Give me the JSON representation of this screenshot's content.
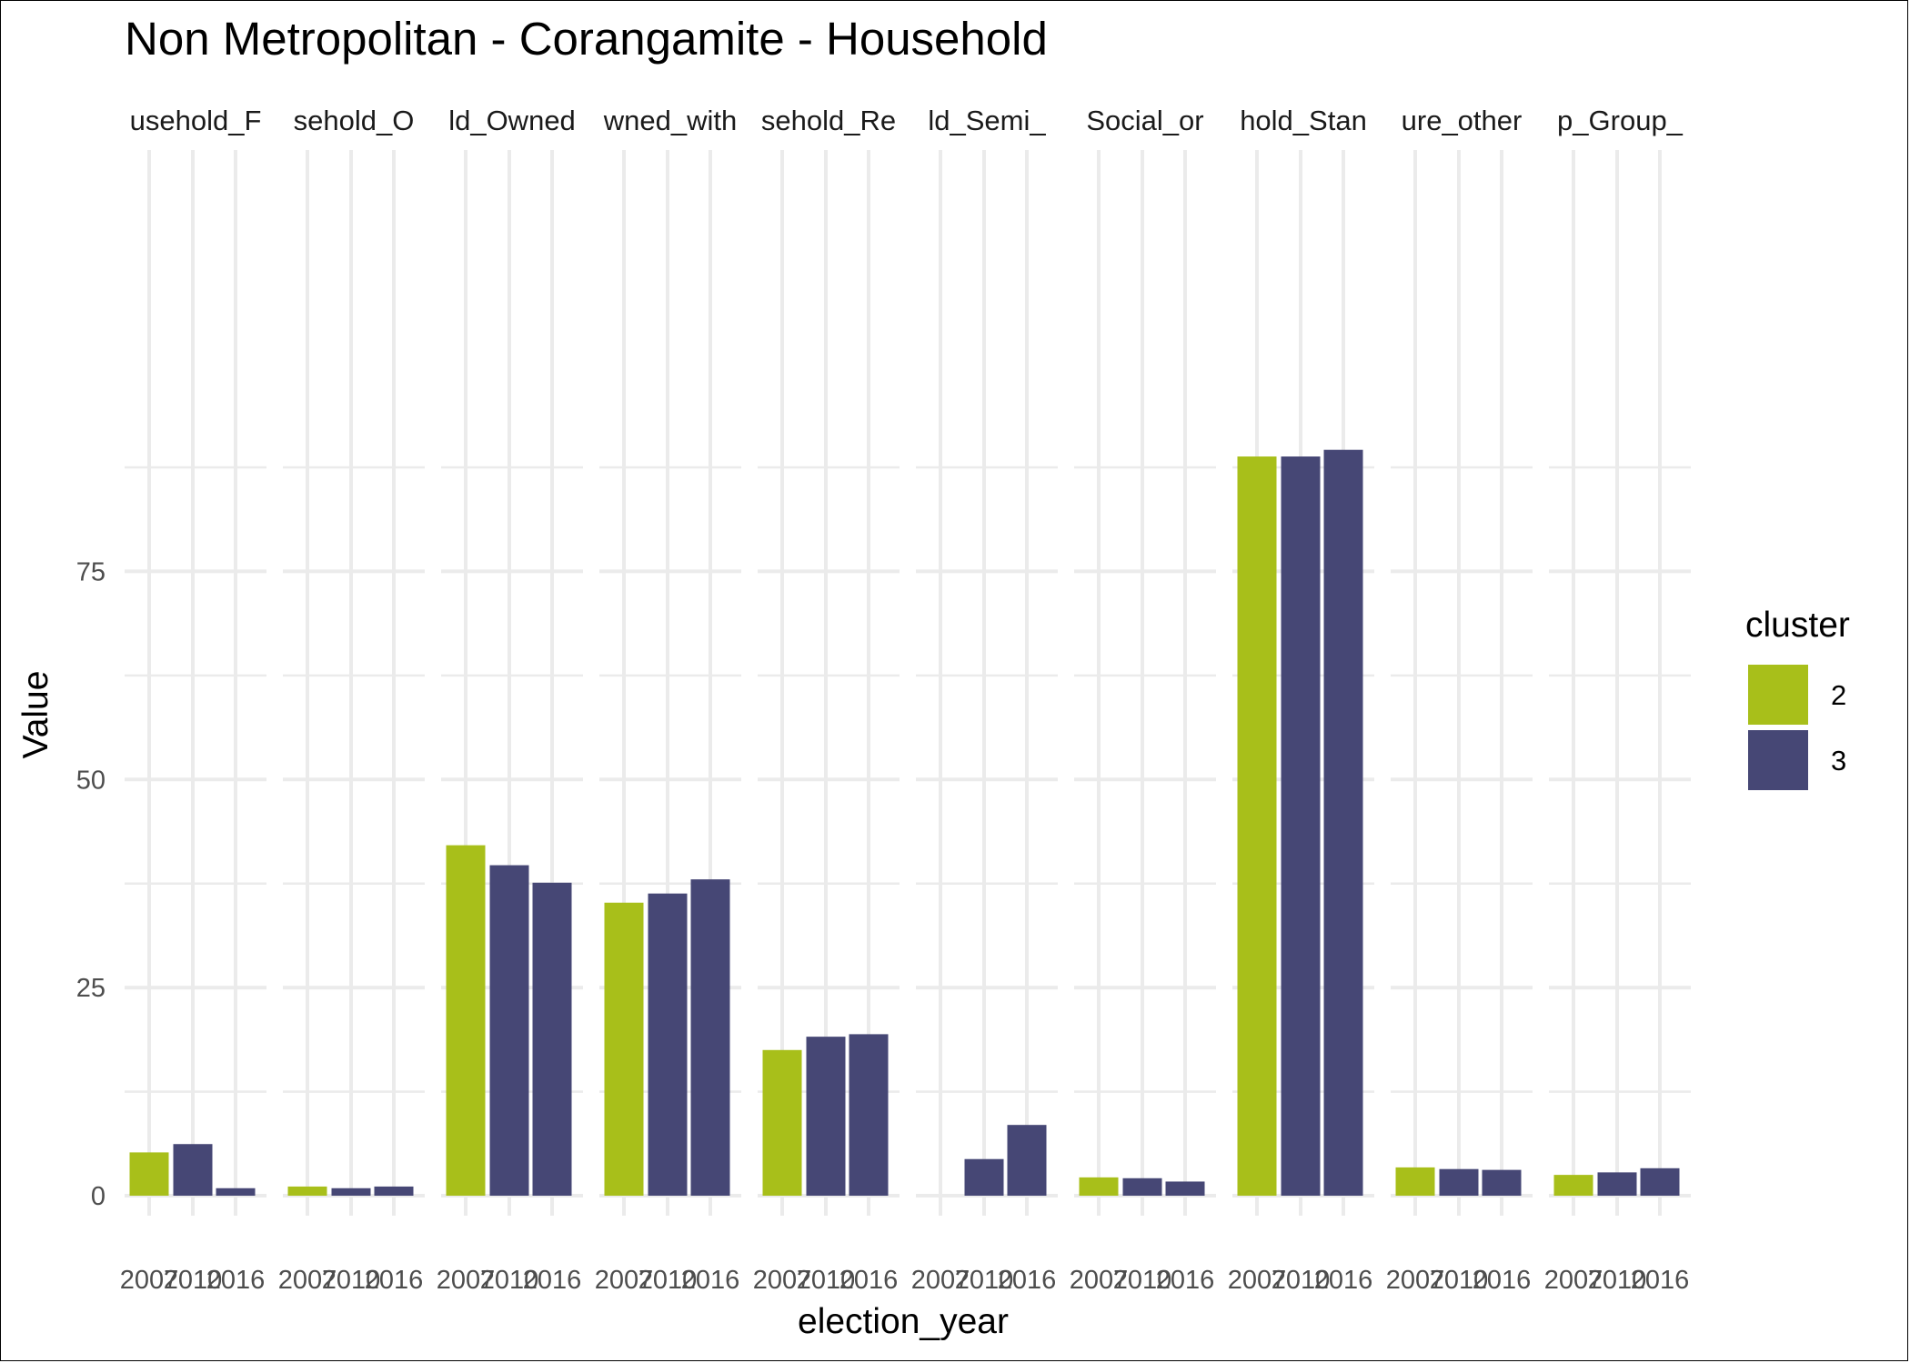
{
  "chart_data": {
    "type": "bar",
    "title": "Non Metropolitan - Corangamite - Household",
    "xlabel": "election_year",
    "ylabel": "Value",
    "ylim": [
      0,
      92
    ],
    "yticks": [
      0,
      25,
      50,
      75
    ],
    "grid": true,
    "legend": {
      "title": "cluster",
      "position": "right"
    },
    "x_tick_labels": [
      "2007",
      "2010",
      "2016"
    ],
    "colors": {
      "2": "#a8bf1a",
      "3": "#464775"
    },
    "facets": [
      {
        "label": "usehold_F",
        "bars": [
          {
            "year": "2007",
            "cluster": "2",
            "value": 5.2
          },
          {
            "year": "2010",
            "cluster": "3",
            "value": 6.2
          },
          {
            "year": "2016",
            "cluster": "3",
            "value": 0.9
          }
        ]
      },
      {
        "label": "sehold_O",
        "bars": [
          {
            "year": "2007",
            "cluster": "2",
            "value": 1.1
          },
          {
            "year": "2010",
            "cluster": "3",
            "value": 0.9
          },
          {
            "year": "2016",
            "cluster": "3",
            "value": 1.1
          }
        ]
      },
      {
        "label": "ld_Owned",
        "bars": [
          {
            "year": "2007",
            "cluster": "2",
            "value": 42.1
          },
          {
            "year": "2010",
            "cluster": "3",
            "value": 39.7
          },
          {
            "year": "2016",
            "cluster": "3",
            "value": 37.6
          }
        ]
      },
      {
        "label": "wned_with",
        "bars": [
          {
            "year": "2007",
            "cluster": "2",
            "value": 35.2
          },
          {
            "year": "2010",
            "cluster": "3",
            "value": 36.3
          },
          {
            "year": "2016",
            "cluster": "3",
            "value": 38.0
          }
        ]
      },
      {
        "label": "sehold_Re",
        "bars": [
          {
            "year": "2007",
            "cluster": "2",
            "value": 17.5
          },
          {
            "year": "2010",
            "cluster": "3",
            "value": 19.1
          },
          {
            "year": "2016",
            "cluster": "3",
            "value": 19.4
          }
        ]
      },
      {
        "label": "ld_Semi_",
        "bars": [
          {
            "year": "2010",
            "cluster": "3",
            "value": 4.4
          },
          {
            "year": "2016",
            "cluster": "3",
            "value": 8.5
          }
        ]
      },
      {
        "label": "Social_or",
        "bars": [
          {
            "year": "2007",
            "cluster": "2",
            "value": 2.2
          },
          {
            "year": "2010",
            "cluster": "3",
            "value": 2.1
          },
          {
            "year": "2016",
            "cluster": "3",
            "value": 1.7
          }
        ]
      },
      {
        "label": "hold_Stan",
        "bars": [
          {
            "year": "2007",
            "cluster": "2",
            "value": 88.8
          },
          {
            "year": "2010",
            "cluster": "3",
            "value": 88.8
          },
          {
            "year": "2016",
            "cluster": "3",
            "value": 89.6
          }
        ]
      },
      {
        "label": "ure_other",
        "bars": [
          {
            "year": "2007",
            "cluster": "2",
            "value": 3.4
          },
          {
            "year": "2010",
            "cluster": "3",
            "value": 3.2
          },
          {
            "year": "2016",
            "cluster": "3",
            "value": 3.1
          }
        ]
      },
      {
        "label": "p_Group_",
        "bars": [
          {
            "year": "2007",
            "cluster": "2",
            "value": 2.5
          },
          {
            "year": "2010",
            "cluster": "3",
            "value": 2.8
          },
          {
            "year": "2016",
            "cluster": "3",
            "value": 3.3
          }
        ]
      }
    ]
  }
}
